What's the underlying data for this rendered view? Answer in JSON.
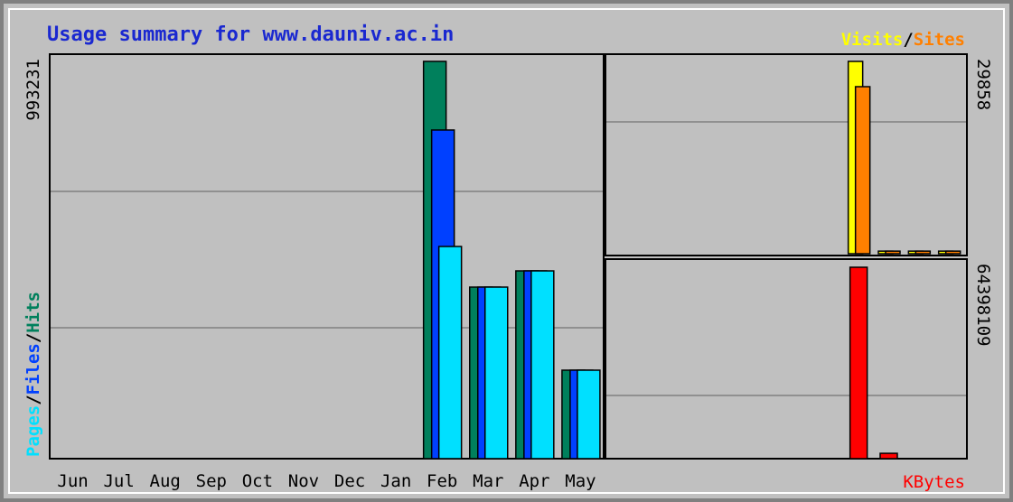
{
  "chart_data": [
    {
      "type": "bar",
      "title": "Usage summary for www.dauniv.ac.in",
      "legend_separator": "/",
      "categories": [
        "Jun",
        "Jul",
        "Aug",
        "Sep",
        "Oct",
        "Nov",
        "Dec",
        "Jan",
        "Feb",
        "Mar",
        "Apr",
        "May"
      ],
      "series": [
        {
          "name": "Hits",
          "color": "#00805c",
          "values": [
            0,
            0,
            0,
            0,
            0,
            0,
            0,
            0,
            993231,
            428900,
            469500,
            221200
          ]
        },
        {
          "name": "Files",
          "color": "#0040ff",
          "values": [
            0,
            0,
            0,
            0,
            0,
            0,
            0,
            0,
            821700,
            428900,
            469500,
            221200
          ]
        },
        {
          "name": "Pages",
          "color": "#00e0ff",
          "values": [
            0,
            0,
            0,
            0,
            0,
            0,
            0,
            0,
            530500,
            428900,
            469500,
            221200
          ]
        }
      ],
      "ylim": [
        0,
        993231
      ],
      "yticks": [
        993231
      ]
    },
    {
      "type": "bar",
      "series": [
        {
          "name": "Visits",
          "color": "#ffff00",
          "values": [
            0,
            0,
            0,
            0,
            0,
            0,
            0,
            0,
            29858,
            400,
            400,
            400
          ]
        },
        {
          "name": "Sites",
          "color": "#ff8000",
          "values": [
            0,
            0,
            0,
            0,
            0,
            0,
            0,
            0,
            25932,
            400,
            400,
            400
          ]
        }
      ],
      "ylim": [
        0,
        29858
      ],
      "yticks": [
        29858
      ]
    },
    {
      "type": "bar",
      "series": [
        {
          "name": "KBytes",
          "color": "#ff0000",
          "values": [
            0,
            0,
            0,
            0,
            0,
            0,
            0,
            0,
            64398109,
            1800000,
            0,
            0
          ]
        }
      ],
      "ylim": [
        0,
        64398109
      ],
      "yticks": [
        64398109
      ]
    }
  ]
}
